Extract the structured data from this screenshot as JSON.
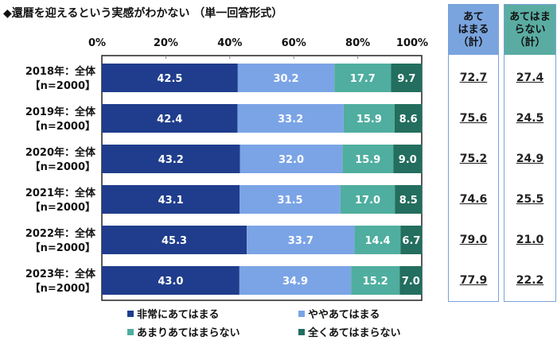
{
  "title": "◆還暦を迎えるという実感がわかない （単一回答形式）",
  "chart_data": {
    "type": "bar",
    "orientation": "horizontal-stacked-100",
    "title": "◆還暦を迎えるという実感がわかない （単一回答形式）",
    "xlim": [
      0,
      100
    ],
    "ticks": [
      "0%",
      "20%",
      "40%",
      "60%",
      "80%",
      "100%"
    ],
    "categories": [
      {
        "line1": "2018年：全体",
        "line2": "【n=2000】"
      },
      {
        "line1": "2019年：全体",
        "line2": "【n=2000】"
      },
      {
        "line1": "2020年：全体",
        "line2": "【n=2000】"
      },
      {
        "line1": "2021年：全体",
        "line2": "【n=2000】"
      },
      {
        "line1": "2022年：全体",
        "line2": "【n=2000】"
      },
      {
        "line1": "2023年：全体",
        "line2": "【n=2000】"
      }
    ],
    "series": [
      {
        "name": "非常にあてはまる",
        "color": "#1f3d8c",
        "values": [
          42.5,
          42.4,
          43.2,
          43.1,
          45.3,
          43.0
        ]
      },
      {
        "name": "ややあてはまる",
        "color": "#7ba4e6",
        "values": [
          30.2,
          33.2,
          32.0,
          31.5,
          33.7,
          34.9
        ]
      },
      {
        "name": "あまりあてはまらない",
        "color": "#4fae9f",
        "values": [
          17.7,
          15.9,
          15.9,
          17.0,
          14.4,
          15.2
        ]
      },
      {
        "name": "全くあてはまらない",
        "color": "#236e5e",
        "values": [
          9.7,
          8.6,
          9.0,
          8.5,
          6.7,
          7.0
        ]
      }
    ],
    "legend_placement": "bottom",
    "summary_columns": [
      {
        "header": "あて\nはまる\n（計）",
        "color": "#7aa4de",
        "values": [
          "72.7",
          "75.6",
          "75.2",
          "74.6",
          "79.0",
          "77.9"
        ]
      },
      {
        "header": "あてはま\nらない\n（計）",
        "color": "#5aaca2",
        "values": [
          "27.4",
          "24.5",
          "24.9",
          "25.5",
          "21.0",
          "22.2"
        ]
      }
    ]
  }
}
